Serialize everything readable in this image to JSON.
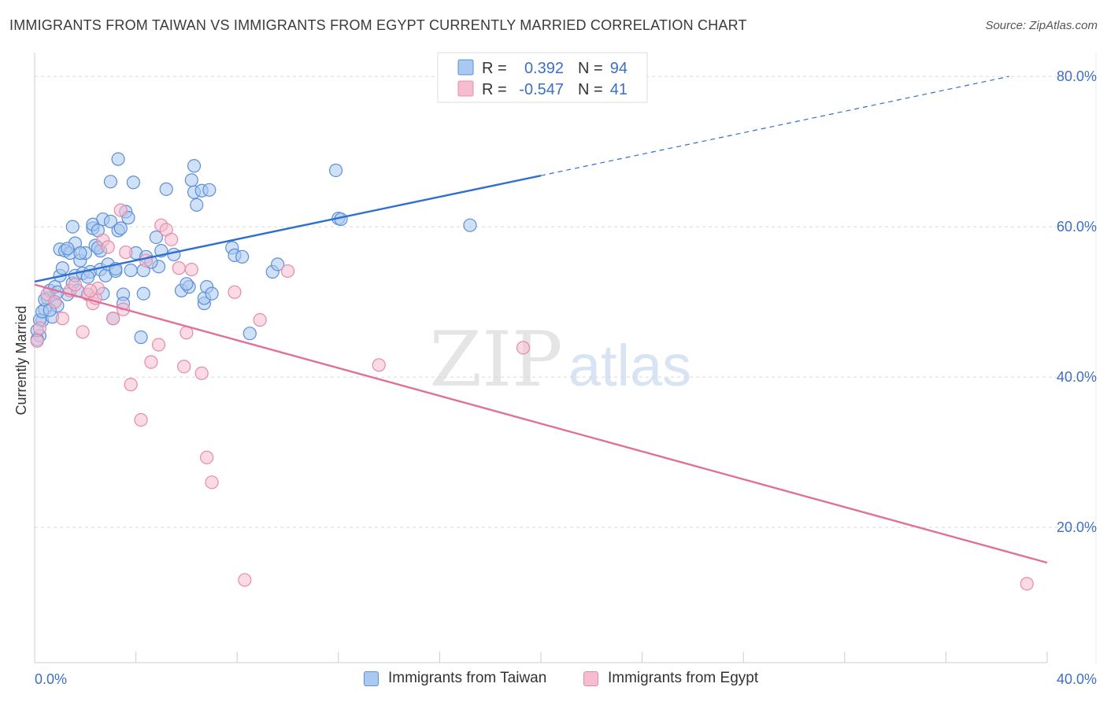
{
  "title": "IMMIGRANTS FROM TAIWAN VS IMMIGRANTS FROM EGYPT CURRENTLY MARRIED CORRELATION CHART",
  "source": "Source: ZipAtlas.com",
  "watermark": {
    "zip": "ZIP",
    "atlas": "atlas"
  },
  "colors": {
    "taiwan_fill": "#a9c9f0",
    "taiwan_stroke": "#5b8fd6",
    "taiwan_line": "#2f6fce",
    "egypt_fill": "#f6bdd0",
    "egypt_stroke": "#e68aa9",
    "egypt_line": "#e0709a",
    "tick_text": "#3d6fc4",
    "grid": "#d9d9d9"
  },
  "legend": {
    "rows": [
      {
        "r_label": "R =",
        "r_value": "0.392",
        "n_label": "N =",
        "n_value": "94"
      },
      {
        "r_label": "R =",
        "r_value": "-0.547",
        "n_label": "N =",
        "n_value": "41"
      }
    ]
  },
  "chart_data": {
    "type": "scatter",
    "ylabel": "Currently Married",
    "x_tick_labels": [
      "0.0%",
      "40.0%"
    ],
    "y_tick_labels": [
      "80.0%",
      "60.0%",
      "40.0%",
      "20.0%"
    ],
    "xlim": [
      0,
      40
    ],
    "ylim": [
      2,
      82
    ],
    "y_ticks": [
      80,
      60,
      40,
      20
    ],
    "legend_position": "top-center",
    "series": [
      {
        "name": "Immigrants from Taiwan",
        "trend": {
          "x0": 0,
          "y0": 52.7,
          "x1": 20,
          "y1": 66.8,
          "dash_x1": 38.5,
          "dash_y1": 80.0
        },
        "points": [
          [
            0.2,
            45.5
          ],
          [
            0.3,
            47.5
          ],
          [
            0.4,
            49
          ],
          [
            0.5,
            50.5
          ],
          [
            0.6,
            51.5
          ],
          [
            0.7,
            48
          ],
          [
            0.8,
            52
          ],
          [
            0.8,
            50
          ],
          [
            0.9,
            49.5
          ],
          [
            1.0,
            53.5
          ],
          [
            1.0,
            57
          ],
          [
            1.1,
            54.5
          ],
          [
            1.2,
            56.8
          ],
          [
            1.3,
            51
          ],
          [
            1.4,
            56.5
          ],
          [
            1.5,
            52.5
          ],
          [
            1.5,
            60
          ],
          [
            1.6,
            53.5
          ],
          [
            1.6,
            57.8
          ],
          [
            1.7,
            51.5
          ],
          [
            1.8,
            55.5
          ],
          [
            1.9,
            53.8
          ],
          [
            2.0,
            56.5
          ],
          [
            2.1,
            51
          ],
          [
            2.2,
            54
          ],
          [
            2.3,
            59.8
          ],
          [
            2.3,
            60.3
          ],
          [
            2.4,
            57.5
          ],
          [
            2.5,
            59.5
          ],
          [
            2.6,
            56.8
          ],
          [
            2.6,
            54.3
          ],
          [
            2.7,
            61
          ],
          [
            2.8,
            53.5
          ],
          [
            2.9,
            55
          ],
          [
            3.0,
            60.7
          ],
          [
            3.0,
            66
          ],
          [
            3.1,
            47.8
          ],
          [
            3.2,
            54.1
          ],
          [
            3.3,
            69
          ],
          [
            3.3,
            59.5
          ],
          [
            3.4,
            59.8
          ],
          [
            3.5,
            51
          ],
          [
            3.5,
            49.8
          ],
          [
            3.6,
            62
          ],
          [
            3.7,
            61.2
          ],
          [
            3.8,
            54.2
          ],
          [
            3.9,
            65.9
          ],
          [
            4.0,
            56.5
          ],
          [
            4.2,
            45.3
          ],
          [
            4.3,
            54.2
          ],
          [
            4.3,
            51.1
          ],
          [
            4.4,
            56
          ],
          [
            4.8,
            58.6
          ],
          [
            4.9,
            54.7
          ],
          [
            5.0,
            56.8
          ],
          [
            5.2,
            65
          ],
          [
            5.5,
            56.3
          ],
          [
            5.8,
            51.5
          ],
          [
            6.1,
            52
          ],
          [
            6.2,
            66.2
          ],
          [
            6.3,
            64.6
          ],
          [
            6.3,
            68.1
          ],
          [
            6.4,
            62.9
          ],
          [
            6.6,
            64.8
          ],
          [
            6.7,
            49.8
          ],
          [
            6.7,
            50.5
          ],
          [
            6.8,
            52
          ],
          [
            6.9,
            64.9
          ],
          [
            7.0,
            51.1
          ],
          [
            7.8,
            57.2
          ],
          [
            7.9,
            56.2
          ],
          [
            8.2,
            56
          ],
          [
            8.5,
            45.8
          ],
          [
            9.4,
            54
          ],
          [
            9.6,
            55
          ],
          [
            11.9,
            67.5
          ],
          [
            12.0,
            61.1
          ],
          [
            12.1,
            61
          ],
          [
            17.2,
            60.2
          ],
          [
            0.1,
            45
          ],
          [
            0.2,
            47.6
          ],
          [
            0.3,
            48.7
          ],
          [
            0.4,
            50.3
          ],
          [
            0.6,
            48.9
          ],
          [
            0.9,
            51.3
          ],
          [
            1.3,
            57.1
          ],
          [
            1.8,
            56.5
          ],
          [
            2.1,
            53.3
          ],
          [
            2.5,
            57.2
          ],
          [
            2.7,
            51.1
          ],
          [
            3.2,
            54.4
          ],
          [
            4.6,
            55.3
          ],
          [
            6.0,
            52.4
          ],
          [
            0.1,
            46.2
          ]
        ]
      },
      {
        "name": "Immigrants from Egypt",
        "trend": {
          "x0": 0,
          "y0": 52.3,
          "x1": 40,
          "y1": 15.3
        },
        "points": [
          [
            0.1,
            44.8
          ],
          [
            0.2,
            46.5
          ],
          [
            0.5,
            51
          ],
          [
            0.8,
            50
          ],
          [
            1.1,
            47.8
          ],
          [
            1.4,
            51.5
          ],
          [
            1.6,
            52.3
          ],
          [
            1.9,
            46
          ],
          [
            2.1,
            51
          ],
          [
            2.3,
            49.8
          ],
          [
            2.4,
            50.5
          ],
          [
            2.5,
            51.8
          ],
          [
            2.7,
            58.2
          ],
          [
            2.9,
            57.3
          ],
          [
            3.1,
            47.8
          ],
          [
            3.4,
            62.2
          ],
          [
            3.5,
            49
          ],
          [
            3.6,
            56.6
          ],
          [
            3.8,
            39
          ],
          [
            4.2,
            34.3
          ],
          [
            4.4,
            55.5
          ],
          [
            4.6,
            42
          ],
          [
            4.9,
            44.3
          ],
          [
            5.0,
            60.2
          ],
          [
            5.2,
            59.6
          ],
          [
            5.4,
            58.3
          ],
          [
            5.7,
            54.5
          ],
          [
            5.9,
            41.4
          ],
          [
            6.0,
            45.9
          ],
          [
            6.2,
            54.3
          ],
          [
            6.6,
            40.5
          ],
          [
            6.8,
            29.3
          ],
          [
            7.0,
            26.0
          ],
          [
            7.9,
            51.3
          ],
          [
            8.3,
            13.0
          ],
          [
            8.9,
            47.6
          ],
          [
            10.0,
            54.1
          ],
          [
            13.6,
            41.6
          ],
          [
            19.3,
            43.9
          ],
          [
            39.2,
            12.5
          ],
          [
            2.2,
            51.5
          ]
        ]
      }
    ]
  }
}
